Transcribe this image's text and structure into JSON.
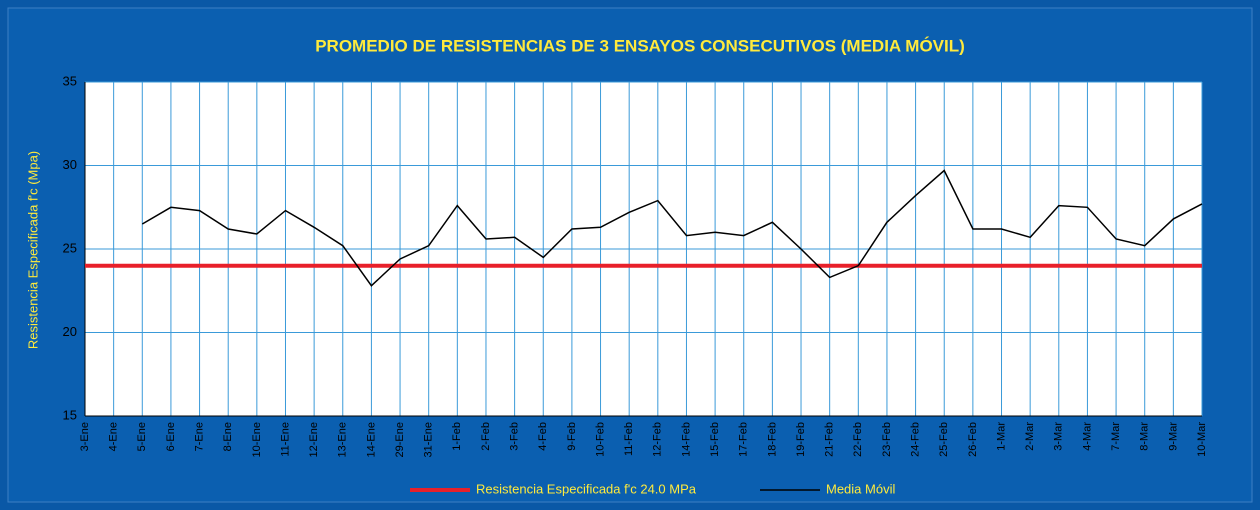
{
  "chart_data": {
    "type": "line",
    "title": "PROMEDIO DE RESISTENCIAS DE 3 ENSAYOS CONSECUTIVOS  (MEDIA MÓVIL)",
    "y_label": "Resistencia Especificada f'c (Mpa)",
    "categories": [
      "3-Ene",
      "4-Ene",
      "5-Ene",
      "6-Ene",
      "7-Ene",
      "8-Ene",
      "10-Ene",
      "11-Ene",
      "12-Ene",
      "13-Ene",
      "14-Ene",
      "29-Ene",
      "31-Ene",
      "1-Feb",
      "2-Feb",
      "3-Feb",
      "4-Feb",
      "9-Feb",
      "10-Feb",
      "11-Feb",
      "12-Feb",
      "14-Feb",
      "15-Feb",
      "17-Feb",
      "18-Feb",
      "19-Feb",
      "21-Feb",
      "22-Feb",
      "23-Feb",
      "24-Feb",
      "25-Feb",
      "26-Feb",
      "1-Mar",
      "2-Mar",
      "3-Mar",
      "4-Mar",
      "7-Mar",
      "8-Mar",
      "9-Mar",
      "10-Mar"
    ],
    "series": [
      {
        "name": "Resistencia Especificada f'c 24.0  MPa",
        "color": "#e8202a",
        "width": 4,
        "values": [
          24,
          24,
          24,
          24,
          24,
          24,
          24,
          24,
          24,
          24,
          24,
          24,
          24,
          24,
          24,
          24,
          24,
          24,
          24,
          24,
          24,
          24,
          24,
          24,
          24,
          24,
          24,
          24,
          24,
          24,
          24,
          24,
          24,
          24,
          24,
          24,
          24,
          24,
          24,
          24
        ]
      },
      {
        "name": "Media Móvil",
        "color": "#000000",
        "width": 1.5,
        "values": [
          null,
          null,
          26.5,
          27.5,
          27.3,
          26.2,
          25.9,
          27.3,
          26.3,
          25.2,
          22.8,
          24.4,
          25.2,
          27.6,
          25.6,
          25.7,
          24.5,
          26.2,
          26.3,
          27.2,
          27.9,
          25.8,
          26.0,
          25.8,
          26.6,
          25.0,
          23.3,
          24.0,
          26.6,
          28.2,
          29.7,
          26.2,
          26.2,
          25.7,
          27.6,
          27.5,
          25.6,
          25.2,
          26.8,
          27.7
        ]
      }
    ],
    "ylim": [
      15,
      35
    ],
    "yticks": [
      15,
      20,
      25,
      30,
      35
    ],
    "grid": true
  }
}
